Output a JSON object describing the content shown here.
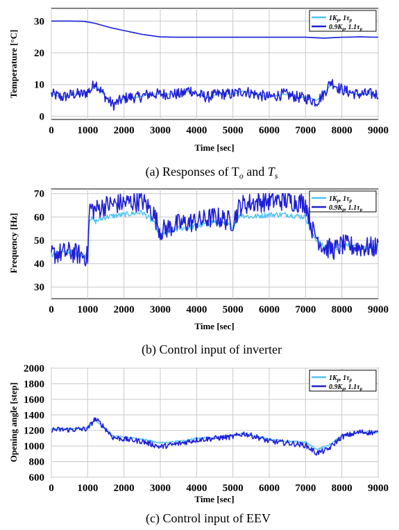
{
  "chart_data": [
    {
      "type": "line",
      "caption": "(a)  Responses of  T",
      "caption_sub1": "o",
      "caption_mid": " and ",
      "caption_t2": "T",
      "caption_sub2": "s",
      "xlabel": "Time  [sec]",
      "ylabel": "Temperature [°C]",
      "xlim": [
        0,
        9000
      ],
      "ylim": [
        -1,
        34
      ],
      "xticks": [
        0,
        1000,
        2000,
        3000,
        4000,
        5000,
        6000,
        7000,
        8000,
        9000
      ],
      "yticks": [
        0,
        10,
        20,
        30
      ],
      "grid": true,
      "legend_position": "top-right",
      "colors": {
        "series1": "#4fc3f7",
        "series2": "#1f1fd6"
      },
      "series": [
        {
          "name": "1K_p, 1τ_p",
          "curves": [
            {
              "x": [
                0,
                500,
                900,
                1200,
                1600,
                2000,
                2500,
                3000,
                3500,
                4000,
                5000,
                6000,
                7000,
                7500,
                8000,
                8500,
                9000
              ],
              "y": [
                30,
                30,
                29.9,
                29.3,
                28,
                27,
                25.8,
                25,
                24.9,
                24.9,
                24.9,
                24.9,
                24.9,
                24.7,
                24.9,
                25,
                24.9
              ]
            },
            {
              "x": [
                0,
                300,
                600,
                900,
                1100,
                1200,
                1300,
                1500,
                1700,
                1900,
                2100,
                2400,
                2700,
                3000,
                3300,
                3600,
                3800,
                4000,
                4300,
                4600,
                5000,
                5300,
                5600,
                6000,
                6400,
                6800,
                7100,
                7300,
                7500,
                7700,
                7900,
                8100,
                8400,
                8700,
                9000
              ],
              "y": [
                7,
                6,
                7,
                7,
                8,
                10,
                9,
                6,
                4,
                5,
                6,
                6,
                7,
                7,
                7,
                7,
                8,
                7,
                6,
                7,
                7,
                8,
                7,
                6,
                7,
                6,
                6,
                5,
                7,
                10,
                9,
                8,
                7,
                7,
                7
              ]
            }
          ]
        },
        {
          "name": "0.9K_p, 1.1τ_p",
          "curves": [
            {
              "x": [
                0,
                500,
                900,
                1200,
                1600,
                2000,
                2500,
                3000,
                3500,
                4000,
                5000,
                6000,
                7000,
                7500,
                8000,
                8500,
                9000
              ],
              "y": [
                30,
                30,
                29.9,
                29.3,
                28,
                27,
                25.8,
                25,
                24.9,
                24.9,
                24.9,
                24.9,
                24.9,
                24.6,
                24.9,
                25,
                24.9
              ]
            },
            {
              "x": [
                0,
                300,
                600,
                900,
                1100,
                1200,
                1300,
                1500,
                1700,
                1900,
                2100,
                2400,
                2700,
                3000,
                3300,
                3600,
                3800,
                4000,
                4300,
                4600,
                5000,
                5300,
                5600,
                6000,
                6400,
                6800,
                7100,
                7300,
                7500,
                7700,
                7900,
                8100,
                8400,
                8700,
                9000
              ],
              "y": [
                7,
                6,
                7,
                7,
                8.5,
                11,
                9,
                6,
                3.5,
                5,
                6,
                6,
                7,
                7,
                7,
                7,
                8.5,
                7,
                6,
                7,
                7,
                8,
                7,
                6,
                7,
                6,
                5.5,
                4.5,
                7,
                11,
                9,
                8,
                7,
                7,
                7
              ]
            }
          ],
          "noise": 1.8
        }
      ]
    },
    {
      "type": "line",
      "caption": "(b)  Control  input  of  inverter",
      "xlabel": "Time  [sec]",
      "ylabel": "Frequency [Hz]",
      "xlim": [
        0,
        9000
      ],
      "ylim": [
        25,
        72
      ],
      "xticks": [
        0,
        1000,
        2000,
        3000,
        4000,
        5000,
        6000,
        7000,
        8000,
        9000
      ],
      "yticks": [
        30,
        40,
        50,
        60,
        70
      ],
      "grid": true,
      "legend_position": "top-right",
      "series": [
        {
          "name": "1K_p, 1τ_p",
          "x": [
            0,
            500,
            1000,
            1050,
            1200,
            1500,
            2000,
            2500,
            2800,
            3000,
            3500,
            4000,
            4500,
            5000,
            5200,
            5500,
            6000,
            6500,
            7000,
            7200,
            7500,
            7800,
            8000,
            8500,
            9000
          ],
          "y": [
            44,
            45,
            43,
            60,
            58,
            60,
            61,
            62,
            58,
            52,
            55,
            56,
            58,
            56,
            61,
            60,
            61,
            61,
            60,
            52,
            47,
            46,
            48,
            47,
            47
          ]
        },
        {
          "name": "0.9K_p, 1.1τ_p",
          "x": [
            0,
            500,
            1000,
            1050,
            1200,
            1500,
            2000,
            2500,
            2800,
            3000,
            3500,
            4000,
            4500,
            5000,
            5200,
            5500,
            6000,
            6500,
            7000,
            7200,
            7500,
            7800,
            8000,
            8500,
            9000
          ],
          "y": [
            44,
            45,
            43,
            64,
            63,
            65,
            66,
            67,
            62,
            54,
            57,
            58,
            60,
            58,
            65,
            66,
            67,
            67,
            66,
            54,
            47,
            46,
            48,
            47,
            47
          ],
          "noise": 4.5,
          "cap": 70
        }
      ]
    },
    {
      "type": "line",
      "caption": "(c)  Control  input  of  EEV",
      "xlabel": "Time  [sec]",
      "ylabel": "Opening angle [step]",
      "xlim": [
        0,
        9000
      ],
      "ylim": [
        600,
        2000
      ],
      "xticks": [
        0,
        1000,
        2000,
        3000,
        4000,
        5000,
        6000,
        7000,
        8000,
        9000
      ],
      "yticks": [
        600,
        800,
        1000,
        1200,
        1400,
        1600,
        1800,
        2000
      ],
      "grid": true,
      "legend_position": "top-right",
      "series": [
        {
          "name": "1K_p, 1τ_p",
          "x": [
            0,
            500,
            1000,
            1200,
            1400,
            1700,
            2000,
            2500,
            3000,
            3500,
            4000,
            4500,
            5000,
            5300,
            5700,
            6000,
            6500,
            7000,
            7300,
            7600,
            8000,
            8500,
            9000
          ],
          "y": [
            1220,
            1220,
            1230,
            1330,
            1260,
            1130,
            1110,
            1090,
            1040,
            1060,
            1100,
            1110,
            1130,
            1160,
            1120,
            1090,
            1060,
            1050,
            960,
            1000,
            1130,
            1180,
            1170
          ]
        },
        {
          "name": "0.9K_p, 1.1τ_p",
          "x": [
            0,
            500,
            1000,
            1200,
            1400,
            1700,
            2000,
            2500,
            3000,
            3500,
            4000,
            4500,
            5000,
            5300,
            5700,
            6000,
            6500,
            7000,
            7300,
            7600,
            8000,
            8500,
            9000
          ],
          "y": [
            1210,
            1210,
            1220,
            1350,
            1270,
            1110,
            1090,
            1060,
            990,
            1030,
            1080,
            1100,
            1120,
            1160,
            1110,
            1060,
            1040,
            1010,
            910,
            950,
            1120,
            1180,
            1170
          ],
          "noise": 35
        }
      ]
    }
  ],
  "legend": {
    "s1": {
      "main1": "1K",
      "sub1": "p",
      "main2": ", 1τ",
      "sub2": "p"
    },
    "s2": {
      "main1": "0.9K",
      "sub1": "p",
      "main2": ", 1.1τ",
      "sub2": "p"
    }
  }
}
